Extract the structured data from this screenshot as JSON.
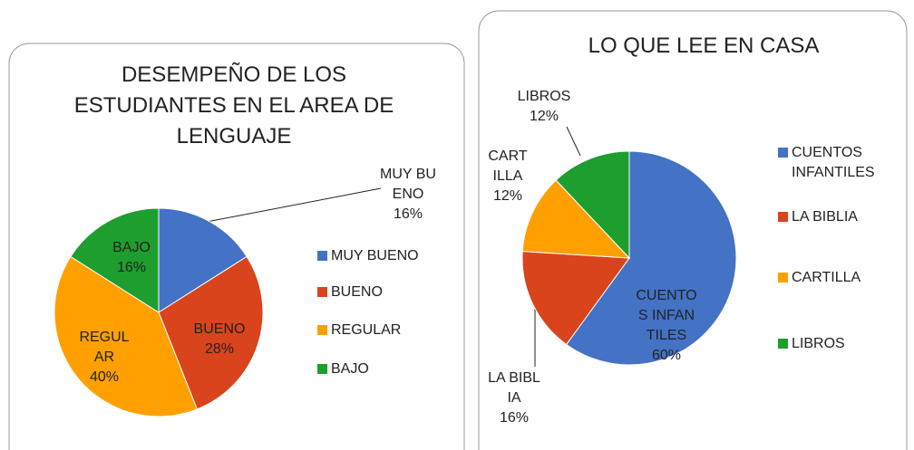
{
  "chart_data": [
    {
      "type": "pie",
      "title": "DESEMPEÑO DE LOS ESTUDIANTES EN EL AREA DE LENGUAJE",
      "categories": [
        "MUY BUENO",
        "BUENO",
        "REGULAR",
        "BAJO"
      ],
      "values": [
        16,
        28,
        40,
        16
      ],
      "value_labels": [
        "16%",
        "28%",
        "40%",
        "16%"
      ],
      "colors": [
        "#4472c4",
        "#d9441c",
        "#ffa000",
        "#1e9e2e"
      ],
      "legend": "right"
    },
    {
      "type": "pie",
      "title": "LO QUE LEE EN CASA",
      "categories": [
        "CUENTOS INFANTILES",
        "LA BIBLIA",
        "CARTILLA",
        "LIBROS"
      ],
      "values": [
        60,
        16,
        12,
        12
      ],
      "value_labels": [
        "60%",
        "16%",
        "12%",
        "12%"
      ],
      "colors": [
        "#4472c4",
        "#d9441c",
        "#ffa000",
        "#1e9e2e"
      ],
      "legend": "right"
    }
  ]
}
